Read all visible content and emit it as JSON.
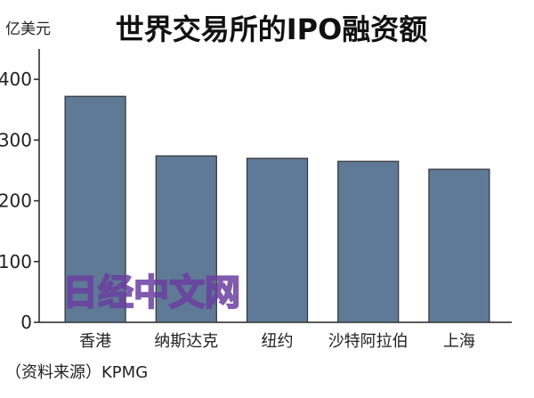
{
  "chart_data": {
    "type": "bar",
    "title": "世界交易所的IPO融资额",
    "unit_label": "亿美元",
    "categories": [
      "香港",
      "纳斯达克",
      "纽约",
      "沙特阿拉伯",
      "上海"
    ],
    "values": [
      372,
      274,
      270,
      265,
      252
    ],
    "ylim": [
      0,
      450
    ],
    "yticks": [
      "0",
      "100",
      "200",
      "300",
      "400"
    ],
    "bar_color": "#5f7a96",
    "grid": false,
    "legend": "none",
    "source": "（资料来源）KPMG"
  },
  "watermark": "日经中文网"
}
